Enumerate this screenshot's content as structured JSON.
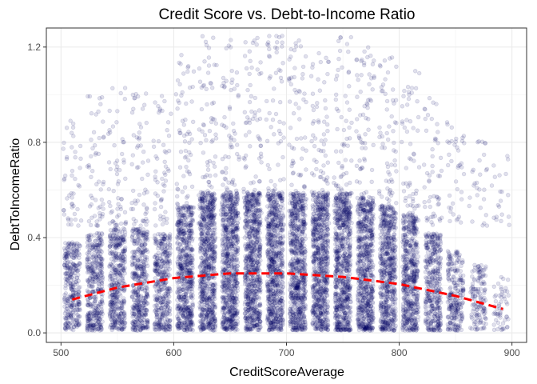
{
  "chart_data": {
    "type": "scatter",
    "title": "Credit Score vs. Debt-to-Income Ratio",
    "xlabel": "CreditScoreAverage",
    "ylabel": "DebtToIncomeRatio",
    "xlim": [
      487,
      913
    ],
    "ylim": [
      -0.04,
      1.28
    ],
    "x_ticks": [
      {
        "value": 500,
        "label": "500"
      },
      {
        "value": 600,
        "label": "600"
      },
      {
        "value": 700,
        "label": "700"
      },
      {
        "value": 800,
        "label": "800"
      },
      {
        "value": 900,
        "label": "900"
      }
    ],
    "y_ticks": [
      {
        "value": 0.0,
        "label": "0.0"
      },
      {
        "value": 0.4,
        "label": "0.4"
      },
      {
        "value": 0.8,
        "label": "0.8"
      },
      {
        "value": 1.2,
        "label": "1.2"
      }
    ],
    "grid": true,
    "point_color": "#000066",
    "point_opacity": 0.12,
    "trend_color": "#ff0000",
    "bins": [
      {
        "x": 510,
        "weight": 0.45
      },
      {
        "x": 530,
        "weight": 0.55
      },
      {
        "x": 550,
        "weight": 0.6
      },
      {
        "x": 570,
        "weight": 0.6
      },
      {
        "x": 590,
        "weight": 0.55
      },
      {
        "x": 610,
        "weight": 0.85
      },
      {
        "x": 630,
        "weight": 1.0
      },
      {
        "x": 650,
        "weight": 1.0
      },
      {
        "x": 670,
        "weight": 1.0
      },
      {
        "x": 690,
        "weight": 1.0
      },
      {
        "x": 710,
        "weight": 1.0
      },
      {
        "x": 730,
        "weight": 1.0
      },
      {
        "x": 750,
        "weight": 1.0
      },
      {
        "x": 770,
        "weight": 0.95
      },
      {
        "x": 790,
        "weight": 0.85
      },
      {
        "x": 810,
        "weight": 0.75
      },
      {
        "x": 830,
        "weight": 0.55
      },
      {
        "x": 850,
        "weight": 0.35
      },
      {
        "x": 870,
        "weight": 0.2
      },
      {
        "x": 890,
        "weight": 0.08
      }
    ],
    "trend": {
      "x": [
        510,
        550,
        600,
        650,
        700,
        750,
        800,
        850,
        892
      ],
      "y": [
        0.14,
        0.19,
        0.23,
        0.25,
        0.25,
        0.235,
        0.205,
        0.155,
        0.1
      ]
    }
  }
}
